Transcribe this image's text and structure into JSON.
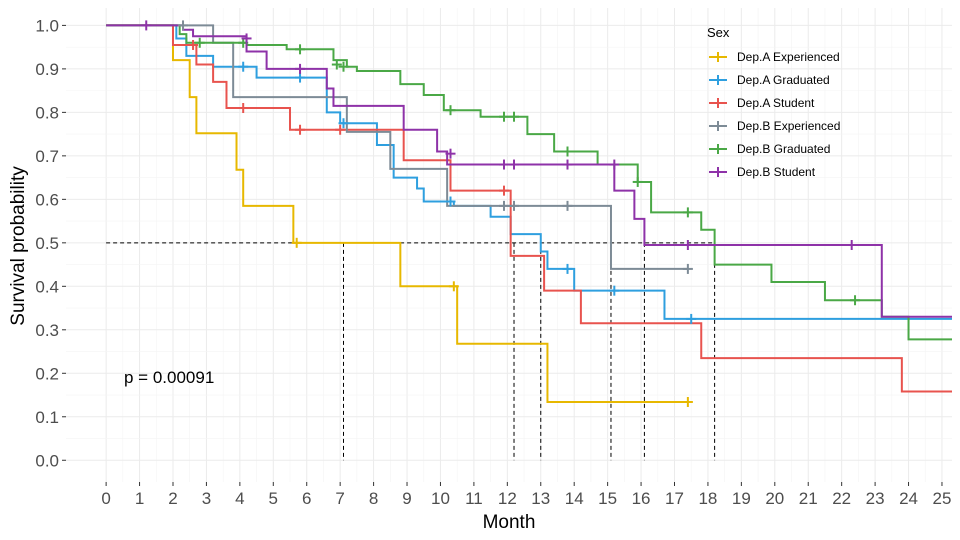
{
  "chart_data": {
    "type": "line",
    "subtype": "kaplan-meier step",
    "xlabel": "Month",
    "ylabel": "Survival probability",
    "xlim": [
      -1.2,
      25.3
    ],
    "ylim": [
      -0.05,
      1.04
    ],
    "xticks": [
      "0",
      "1",
      "2",
      "3",
      "4",
      "5",
      "6",
      "7",
      "8",
      "9",
      "10",
      "11",
      "12",
      "13",
      "14",
      "15",
      "16",
      "17",
      "18",
      "19",
      "20",
      "21",
      "22",
      "23",
      "24",
      "25"
    ],
    "yticks": [
      "0.0",
      "0.1",
      "0.2",
      "0.3",
      "0.4",
      "0.5",
      "0.6",
      "0.7",
      "0.8",
      "0.9",
      "1.0"
    ],
    "grid": true,
    "legend_title": "Sex",
    "legend_position": "top-right",
    "annotation": "p = 0.00091",
    "median_line": 0.5,
    "median_times": [
      7.1,
      12.2,
      13.0,
      15.1,
      16.1,
      18.2
    ],
    "series": [
      {
        "name": "Dep.A Experienced",
        "color": "#E7B800",
        "steps": [
          [
            0,
            1.0
          ],
          [
            2.0,
            0.92
          ],
          [
            2.5,
            0.835
          ],
          [
            2.7,
            0.752
          ],
          [
            3.9,
            0.668
          ],
          [
            4.1,
            0.585
          ],
          [
            5.6,
            0.5
          ],
          [
            8.8,
            0.4
          ],
          [
            10.5,
            0.268
          ],
          [
            13.2,
            0.134
          ],
          [
            17.4,
            0.134
          ]
        ],
        "censored": [
          [
            5.7,
            0.5
          ],
          [
            10.4,
            0.4
          ],
          [
            17.4,
            0.134
          ]
        ]
      },
      {
        "name": "Dep.A Graduated",
        "color": "#2E9FDF",
        "steps": [
          [
            0,
            1.0
          ],
          [
            2.1,
            0.97
          ],
          [
            2.4,
            0.93
          ],
          [
            3.2,
            0.905
          ],
          [
            4.5,
            0.88
          ],
          [
            6.6,
            0.8
          ],
          [
            7.0,
            0.775
          ],
          [
            8.1,
            0.725
          ],
          [
            8.6,
            0.65
          ],
          [
            9.3,
            0.625
          ],
          [
            9.5,
            0.595
          ],
          [
            10.4,
            0.585
          ],
          [
            11.5,
            0.56
          ],
          [
            12.1,
            0.52
          ],
          [
            13.0,
            0.48
          ],
          [
            13.2,
            0.44
          ],
          [
            14.0,
            0.39
          ],
          [
            16.7,
            0.325
          ],
          [
            25.3,
            0.325
          ]
        ],
        "censored": [
          [
            4.1,
            0.905
          ],
          [
            5.8,
            0.88
          ],
          [
            7.1,
            0.775
          ],
          [
            10.3,
            0.595
          ],
          [
            13.8,
            0.44
          ],
          [
            15.2,
            0.39
          ],
          [
            17.5,
            0.325
          ]
        ]
      },
      {
        "name": "Dep.A Student",
        "color": "#E8534E",
        "steps": [
          [
            0,
            1.0
          ],
          [
            2.0,
            0.955
          ],
          [
            2.7,
            0.91
          ],
          [
            3.2,
            0.87
          ],
          [
            3.6,
            0.81
          ],
          [
            5.5,
            0.76
          ],
          [
            7.0,
            0.76
          ],
          [
            8.9,
            0.69
          ],
          [
            10.3,
            0.62
          ],
          [
            12.1,
            0.47
          ],
          [
            13.1,
            0.39
          ],
          [
            14.2,
            0.315
          ],
          [
            16.7,
            0.315
          ],
          [
            17.8,
            0.235
          ],
          [
            23.8,
            0.158
          ],
          [
            25.3,
            0.158
          ]
        ],
        "censored": [
          [
            2.6,
            0.955
          ],
          [
            4.1,
            0.81
          ],
          [
            5.8,
            0.76
          ],
          [
            7.0,
            0.76
          ],
          [
            11.9,
            0.62
          ]
        ]
      },
      {
        "name": "Dep.B Experienced",
        "color": "#7D8B96",
        "steps": [
          [
            0,
            1.0
          ],
          [
            3.2,
            0.96
          ],
          [
            3.8,
            0.835
          ],
          [
            6.5,
            0.835
          ],
          [
            7.2,
            0.755
          ],
          [
            8.5,
            0.67
          ],
          [
            10.2,
            0.585
          ],
          [
            15.1,
            0.44
          ],
          [
            17.4,
            0.44
          ]
        ],
        "censored": [
          [
            2.3,
            1.0
          ],
          [
            11.9,
            0.585
          ],
          [
            12.2,
            0.585
          ],
          [
            13.8,
            0.585
          ],
          [
            17.4,
            0.44
          ]
        ]
      },
      {
        "name": "Dep.B Graduated",
        "color": "#4AA846",
        "steps": [
          [
            0,
            1.0
          ],
          [
            2.2,
            0.98
          ],
          [
            2.4,
            0.96
          ],
          [
            4.2,
            0.955
          ],
          [
            5.4,
            0.945
          ],
          [
            6.8,
            0.92
          ],
          [
            7.2,
            0.905
          ],
          [
            7.5,
            0.895
          ],
          [
            8.8,
            0.865
          ],
          [
            9.5,
            0.84
          ],
          [
            10.1,
            0.805
          ],
          [
            11.2,
            0.79
          ],
          [
            12.6,
            0.75
          ],
          [
            13.4,
            0.71
          ],
          [
            14.7,
            0.68
          ],
          [
            15.9,
            0.64
          ],
          [
            16.3,
            0.57
          ],
          [
            17.8,
            0.53
          ],
          [
            18.2,
            0.45
          ],
          [
            19.9,
            0.41
          ],
          [
            21.5,
            0.368
          ],
          [
            23.2,
            0.33
          ],
          [
            24.0,
            0.278
          ],
          [
            25.3,
            0.278
          ]
        ],
        "censored": [
          [
            2.8,
            0.96
          ],
          [
            4.1,
            0.96
          ],
          [
            5.8,
            0.945
          ],
          [
            6.9,
            0.91
          ],
          [
            7.1,
            0.905
          ],
          [
            10.3,
            0.805
          ],
          [
            11.9,
            0.79
          ],
          [
            12.2,
            0.79
          ],
          [
            13.8,
            0.71
          ],
          [
            15.9,
            0.64
          ],
          [
            17.4,
            0.57
          ],
          [
            22.4,
            0.368
          ]
        ]
      },
      {
        "name": "Dep.B Student",
        "color": "#8E32A8",
        "steps": [
          [
            0,
            1.0
          ],
          [
            2.3,
            0.99
          ],
          [
            2.6,
            0.975
          ],
          [
            4.2,
            0.94
          ],
          [
            4.8,
            0.9
          ],
          [
            6.6,
            0.855
          ],
          [
            6.8,
            0.815
          ],
          [
            8.9,
            0.76
          ],
          [
            9.9,
            0.71
          ],
          [
            10.2,
            0.68
          ],
          [
            15.2,
            0.62
          ],
          [
            15.8,
            0.555
          ],
          [
            16.1,
            0.495
          ],
          [
            23.2,
            0.33
          ],
          [
            25.3,
            0.33
          ]
        ],
        "censored": [
          [
            1.2,
            1.0
          ],
          [
            4.2,
            0.97
          ],
          [
            5.8,
            0.9
          ],
          [
            10.3,
            0.705
          ],
          [
            11.9,
            0.68
          ],
          [
            12.2,
            0.68
          ],
          [
            13.8,
            0.68
          ],
          [
            15.2,
            0.68
          ],
          [
            17.4,
            0.495
          ],
          [
            22.3,
            0.495
          ]
        ]
      }
    ]
  }
}
